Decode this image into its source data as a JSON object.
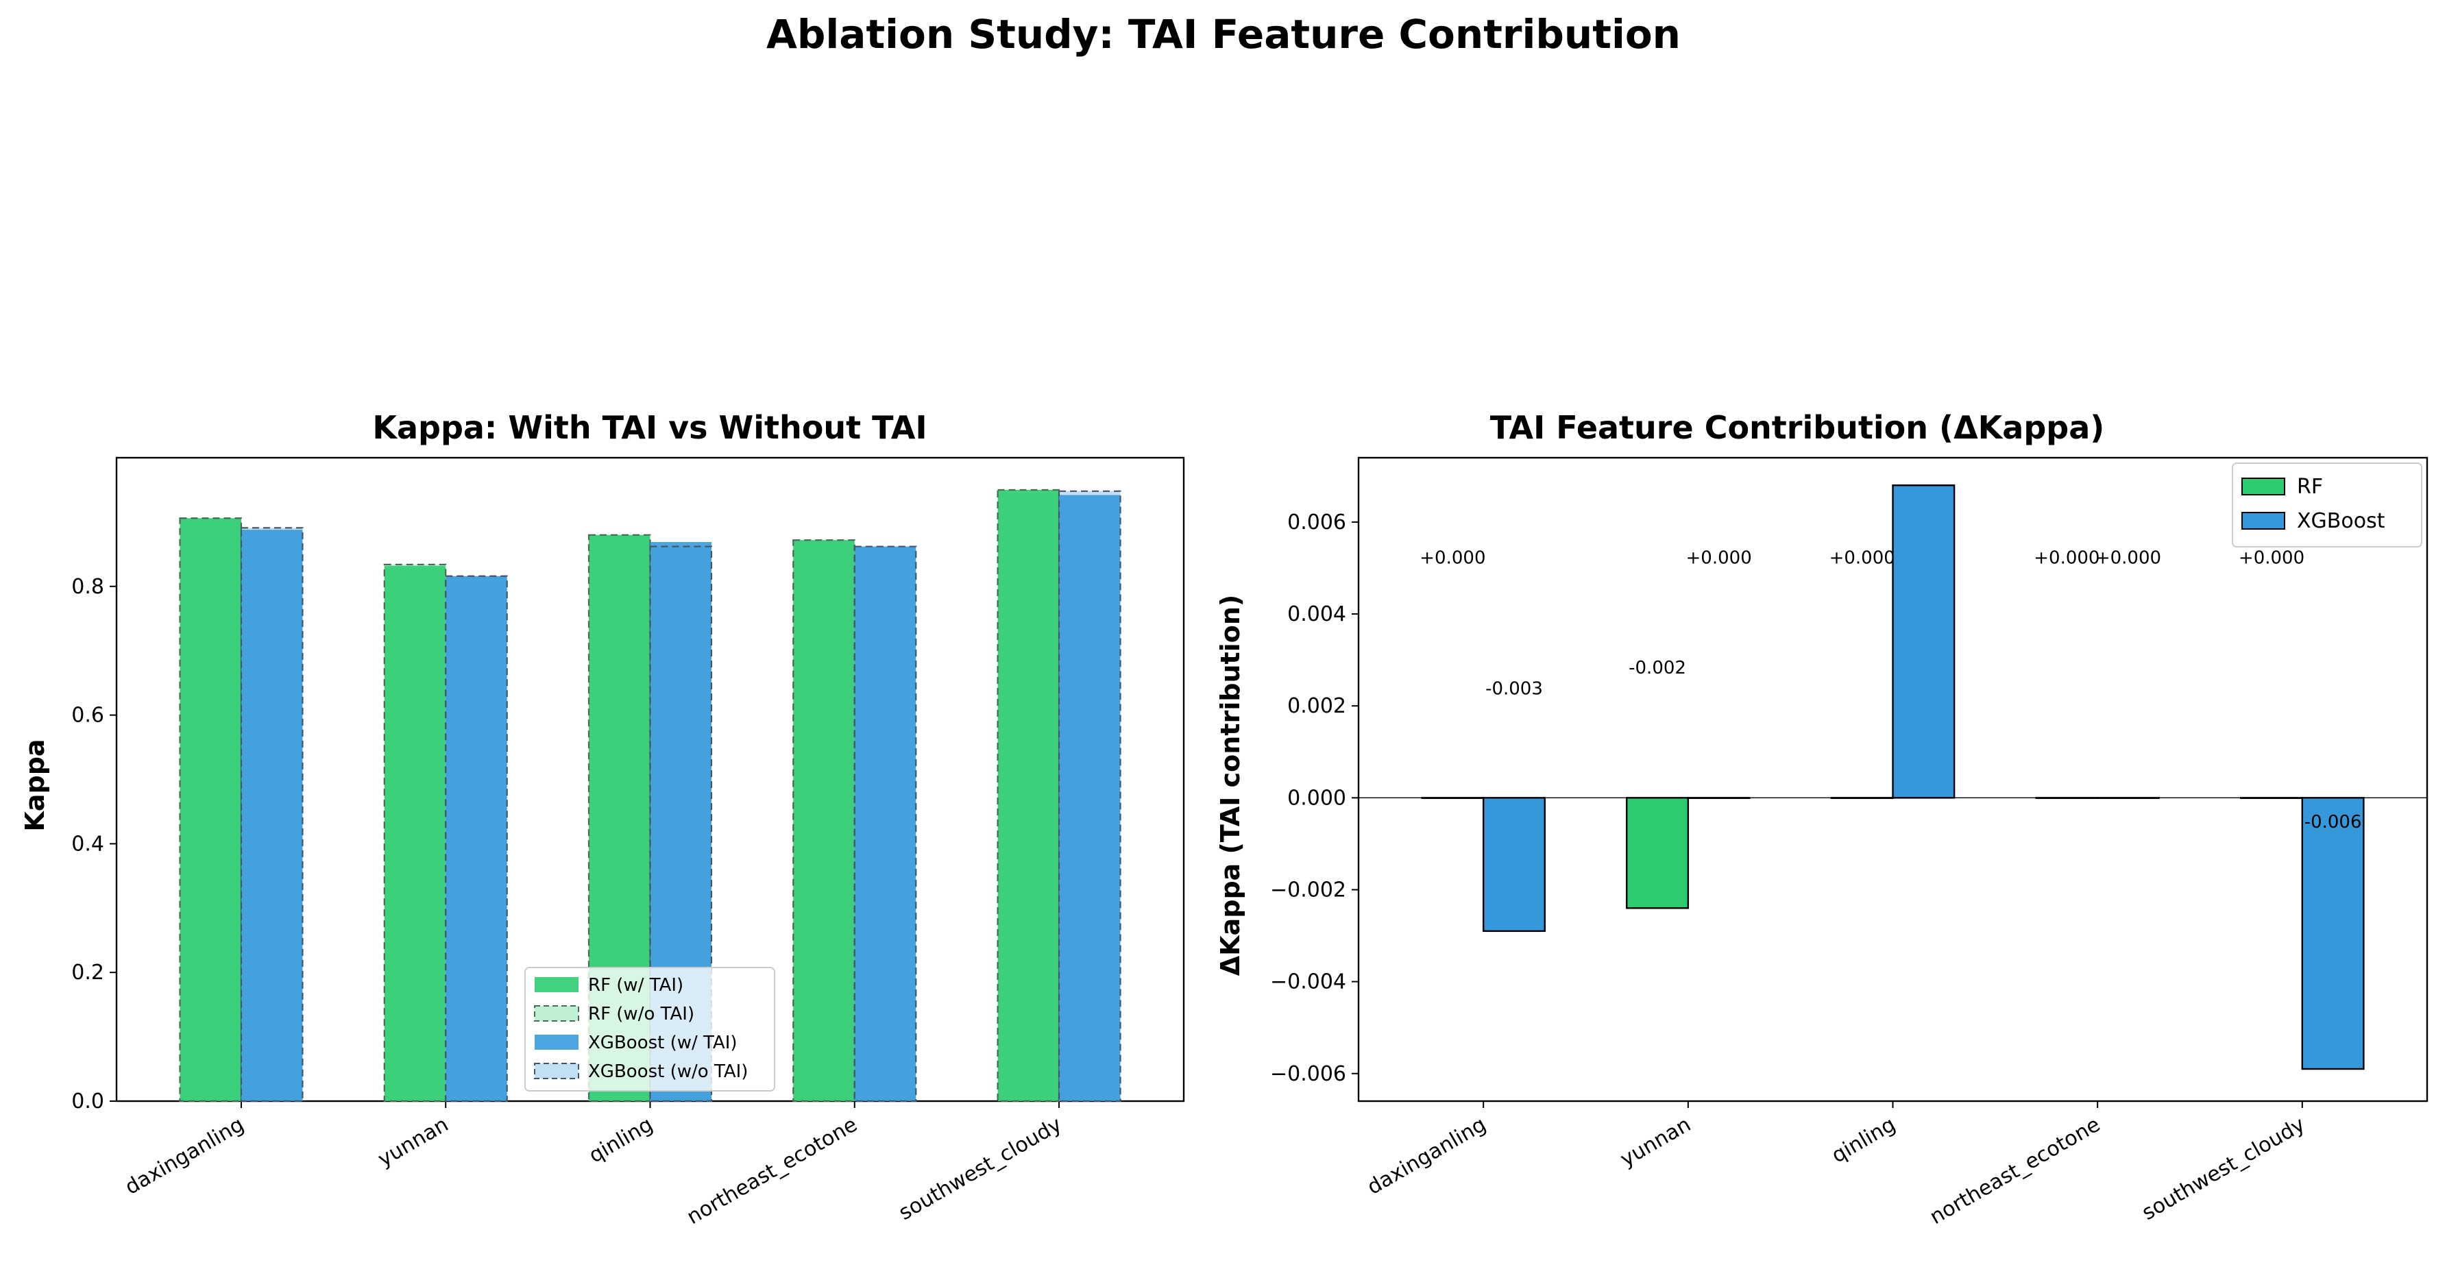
{
  "suptitle": "Ablation Study: TAI Feature Contribution",
  "colors": {
    "rf": "#2ecc71",
    "xgb": "#3498db"
  },
  "chart_data": [
    {
      "type": "bar",
      "title": "Kappa: With TAI vs Without TAI",
      "xlabel": "",
      "ylabel": "Kappa",
      "categories": [
        "daxinganling",
        "yunnan",
        "qinling",
        "northeast_ecotone",
        "southwest_cloudy"
      ],
      "ylim": [
        0,
        1.0
      ],
      "yticks": [
        0.0,
        0.2,
        0.4,
        0.6,
        0.8
      ],
      "ytick_labels": [
        "0.0",
        "0.2",
        "0.4",
        "0.6",
        "0.8"
      ],
      "series": [
        {
          "name": "RF (w/ TAI)",
          "values": [
            0.906,
            0.832,
            0.88,
            0.872,
            0.95
          ]
        },
        {
          "name": "RF (w/o TAI)",
          "values": [
            0.906,
            0.834,
            0.88,
            0.872,
            0.95
          ]
        },
        {
          "name": "XGBoost (w/ TAI)",
          "values": [
            0.888,
            0.816,
            0.869,
            0.862,
            0.942
          ]
        },
        {
          "name": "XGBoost (w/o TAI)",
          "values": [
            0.891,
            0.816,
            0.862,
            0.862,
            0.948
          ]
        }
      ],
      "legend_position": "lower center",
      "grid": false
    },
    {
      "type": "bar",
      "title": "TAI Feature Contribution (ΔKappa)",
      "xlabel": "",
      "ylabel": "ΔKappa (TAI contribution)",
      "categories": [
        "daxinganling",
        "yunnan",
        "qinling",
        "northeast_ecotone",
        "southwest_cloudy"
      ],
      "ylim": [
        -0.0066,
        0.0074
      ],
      "yticks": [
        -0.006,
        -0.004,
        -0.002,
        0.0,
        0.002,
        0.004,
        0.006
      ],
      "ytick_labels": [
        "−0.006",
        "−0.004",
        "−0.002",
        "0.000",
        "0.002",
        "0.004",
        "0.006"
      ],
      "series": [
        {
          "name": "RF",
          "values": [
            0.0,
            -0.0024,
            0.0,
            0.0,
            0.0
          ],
          "labels": [
            "+0.000",
            "-0.002",
            "+0.000",
            "+0.000",
            "+0.000"
          ]
        },
        {
          "name": "XGBoost",
          "values": [
            -0.0029,
            0.0,
            0.0068,
            0.0,
            -0.0059
          ],
          "labels": [
            "-0.003",
            "+0.000",
            "+0.007",
            "+0.000",
            "-0.006"
          ]
        }
      ],
      "legend_position": "upper right",
      "grid": false
    }
  ]
}
